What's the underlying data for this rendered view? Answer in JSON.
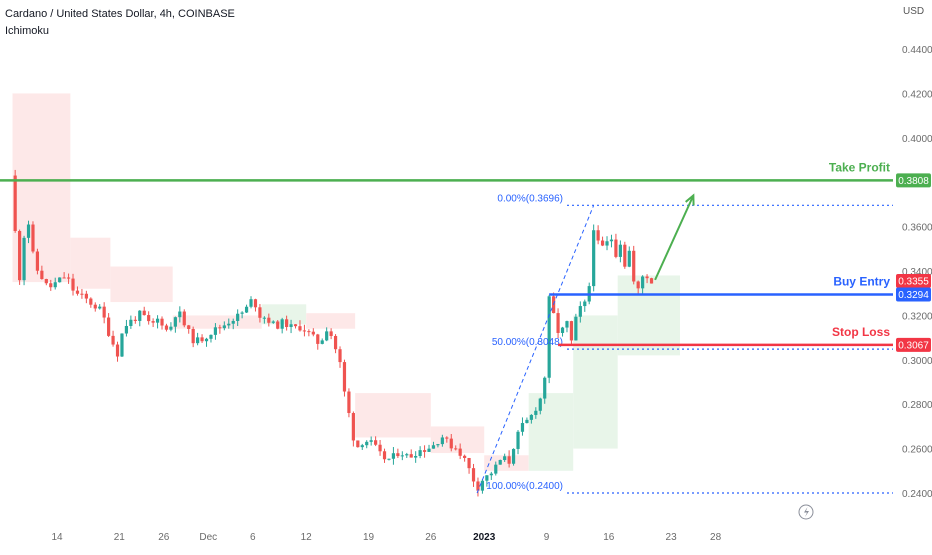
{
  "header": {
    "title": "Cardano / United States Dollar, 4h, COINBASE",
    "indicator": "Ichimoku",
    "currency": "USD"
  },
  "colors": {
    "take_profit": "#4caf50",
    "buy_entry": "#2962ff",
    "stop_loss": "#f23645",
    "candle_up": "#26a69a",
    "candle_down": "#ef5350",
    "fib": "#2962ff",
    "cloud_bull": "#e8f5e9",
    "cloud_bear": "#fde8e8",
    "axis_text": "#6b6b6b"
  },
  "chart_data": {
    "type": "candlestick",
    "symbol": "Cardano / United States Dollar",
    "interval": "4h",
    "exchange": "COINBASE",
    "ylim": [
      0.238,
      0.456
    ],
    "y_ticks": [
      "0.4400",
      "0.4200",
      "0.4000",
      "0.3600",
      "0.3400",
      "0.3200",
      "0.3000",
      "0.2800",
      "0.2600",
      "0.2400"
    ],
    "x_ticks": [
      {
        "label": "14",
        "day": 0
      },
      {
        "label": "21",
        "day": 7
      },
      {
        "label": "26",
        "day": 12
      },
      {
        "label": "Dec",
        "day": 17
      },
      {
        "label": "6",
        "day": 22
      },
      {
        "label": "12",
        "day": 28
      },
      {
        "label": "19",
        "day": 35
      },
      {
        "label": "26",
        "day": 42
      },
      {
        "label": "2023",
        "day": 48
      },
      {
        "label": "9",
        "day": 55
      },
      {
        "label": "16",
        "day": 62
      },
      {
        "label": "23",
        "day": 69
      },
      {
        "label": "28",
        "day": 74
      }
    ],
    "price_path": [
      [
        -5.2,
        0.383
      ],
      [
        -4.9,
        0.365
      ],
      [
        -4.5,
        0.35
      ],
      [
        -4.1,
        0.333
      ],
      [
        -3.8,
        0.352
      ],
      [
        -3.4,
        0.368
      ],
      [
        -3.0,
        0.355
      ],
      [
        -2.5,
        0.342
      ],
      [
        -1.8,
        0.338
      ],
      [
        -1.0,
        0.332
      ],
      [
        0.0,
        0.335
      ],
      [
        1.0,
        0.338
      ],
      [
        2.0,
        0.33
      ],
      [
        3.0,
        0.328
      ],
      [
        4.0,
        0.325
      ],
      [
        5.0,
        0.322
      ],
      [
        6.0,
        0.31
      ],
      [
        6.8,
        0.303
      ],
      [
        7.5,
        0.315
      ],
      [
        8.5,
        0.318
      ],
      [
        9.5,
        0.321
      ],
      [
        10.5,
        0.315
      ],
      [
        11.5,
        0.319
      ],
      [
        12.5,
        0.312
      ],
      [
        13.5,
        0.323
      ],
      [
        14.5,
        0.314
      ],
      [
        15.5,
        0.308
      ],
      [
        16.5,
        0.31
      ],
      [
        17.5,
        0.313
      ],
      [
        18.5,
        0.315
      ],
      [
        19.5,
        0.318
      ],
      [
        20.5,
        0.32
      ],
      [
        21.5,
        0.324
      ],
      [
        22.0,
        0.328
      ],
      [
        22.8,
        0.32
      ],
      [
        23.5,
        0.319
      ],
      [
        24.5,
        0.315
      ],
      [
        25.5,
        0.317
      ],
      [
        26.5,
        0.314
      ],
      [
        27.5,
        0.315
      ],
      [
        28.5,
        0.311
      ],
      [
        29.5,
        0.307
      ],
      [
        30.5,
        0.316
      ],
      [
        31.0,
        0.308
      ],
      [
        31.7,
        0.301
      ],
      [
        32.2,
        0.287
      ],
      [
        32.7,
        0.278
      ],
      [
        33.2,
        0.266
      ],
      [
        33.8,
        0.261
      ],
      [
        34.5,
        0.264
      ],
      [
        35.5,
        0.262
      ],
      [
        36.5,
        0.256
      ],
      [
        37.5,
        0.255
      ],
      [
        38.5,
        0.259
      ],
      [
        39.5,
        0.256
      ],
      [
        40.5,
        0.259
      ],
      [
        41.5,
        0.26
      ],
      [
        42.5,
        0.262
      ],
      [
        43.2,
        0.266
      ],
      [
        44.0,
        0.262
      ],
      [
        45.0,
        0.26
      ],
      [
        45.8,
        0.255
      ],
      [
        46.5,
        0.249
      ],
      [
        47.2,
        0.242
      ],
      [
        47.8,
        0.246
      ],
      [
        48.5,
        0.248
      ],
      [
        49.2,
        0.251
      ],
      [
        50.0,
        0.256
      ],
      [
        50.8,
        0.254
      ],
      [
        51.5,
        0.264
      ],
      [
        52.3,
        0.27
      ],
      [
        53.2,
        0.274
      ],
      [
        54.0,
        0.28
      ],
      [
        54.6,
        0.285
      ],
      [
        55.0,
        0.3
      ],
      [
        55.3,
        0.327
      ],
      [
        55.8,
        0.32
      ],
      [
        56.5,
        0.31
      ],
      [
        57.2,
        0.318
      ],
      [
        57.8,
        0.308
      ],
      [
        58.5,
        0.322
      ],
      [
        59.3,
        0.325
      ],
      [
        59.9,
        0.335
      ],
      [
        60.3,
        0.36
      ],
      [
        60.8,
        0.352
      ],
      [
        61.5,
        0.35
      ],
      [
        62.2,
        0.356
      ],
      [
        62.8,
        0.348
      ],
      [
        63.3,
        0.353
      ],
      [
        63.9,
        0.341
      ],
      [
        64.3,
        0.349
      ],
      [
        64.8,
        0.335
      ],
      [
        65.2,
        0.33
      ],
      [
        65.6,
        0.335
      ],
      [
        66.0,
        0.34
      ],
      [
        66.4,
        0.337
      ],
      [
        66.8,
        0.335
      ]
    ],
    "ichimoku_cloud": [
      {
        "from": -5.0,
        "to": 1.5,
        "top": 0.42,
        "bottom": 0.335,
        "bullish": false
      },
      {
        "from": 1.5,
        "to": 6.0,
        "top": 0.355,
        "bottom": 0.332,
        "bullish": false
      },
      {
        "from": 6.0,
        "to": 13.0,
        "top": 0.342,
        "bottom": 0.326,
        "bullish": false
      },
      {
        "from": 13.0,
        "to": 23.0,
        "top": 0.32,
        "bottom": 0.314,
        "bullish": false
      },
      {
        "from": 23.0,
        "to": 28.0,
        "top": 0.325,
        "bottom": 0.316,
        "bullish": true
      },
      {
        "from": 28.0,
        "to": 33.5,
        "top": 0.321,
        "bottom": 0.314,
        "bullish": false
      },
      {
        "from": 33.5,
        "to": 42.0,
        "top": 0.285,
        "bottom": 0.265,
        "bullish": false
      },
      {
        "from": 42.0,
        "to": 48.0,
        "top": 0.27,
        "bottom": 0.258,
        "bullish": false
      },
      {
        "from": 48.0,
        "to": 53.0,
        "top": 0.257,
        "bottom": 0.25,
        "bullish": false
      },
      {
        "from": 53.0,
        "to": 58.0,
        "top": 0.285,
        "bottom": 0.25,
        "bullish": true
      },
      {
        "from": 58.0,
        "to": 63.0,
        "top": 0.32,
        "bottom": 0.26,
        "bullish": true
      },
      {
        "from": 63.0,
        "to": 70.0,
        "top": 0.338,
        "bottom": 0.302,
        "bullish": true
      }
    ],
    "levels": {
      "take_profit": {
        "label": "Take Profit",
        "value": 0.3808,
        "value_text": "0.3808"
      },
      "buy_entry": {
        "label": "Buy Entry",
        "value": 0.3294,
        "value_text": "0.3294"
      },
      "stop_loss": {
        "label": "Stop Loss",
        "value": 0.3067,
        "value_text": "0.3067"
      },
      "current_price": {
        "value": 0.3355,
        "value_text": "0.3355"
      }
    },
    "fibonacci": [
      {
        "label": "0.00%(0.3696)",
        "value": 0.3696
      },
      {
        "label": "50.00%(0.3048)",
        "value": 0.3048
      },
      {
        "label": "100.00%(0.2400)",
        "value": 0.24
      }
    ],
    "fib_trend": {
      "from_day": 47.2,
      "from_value": 0.24,
      "to_day": 60.3,
      "to_value": 0.3696
    },
    "buy_entry_span": [
      55.3,
      74.0
    ],
    "stop_loss_span": [
      56.3,
      74.0
    ],
    "take_profit_arrow": {
      "from_day": 67.2,
      "from_value": 0.336,
      "to_day": 71.5,
      "to_value": 0.374
    }
  }
}
